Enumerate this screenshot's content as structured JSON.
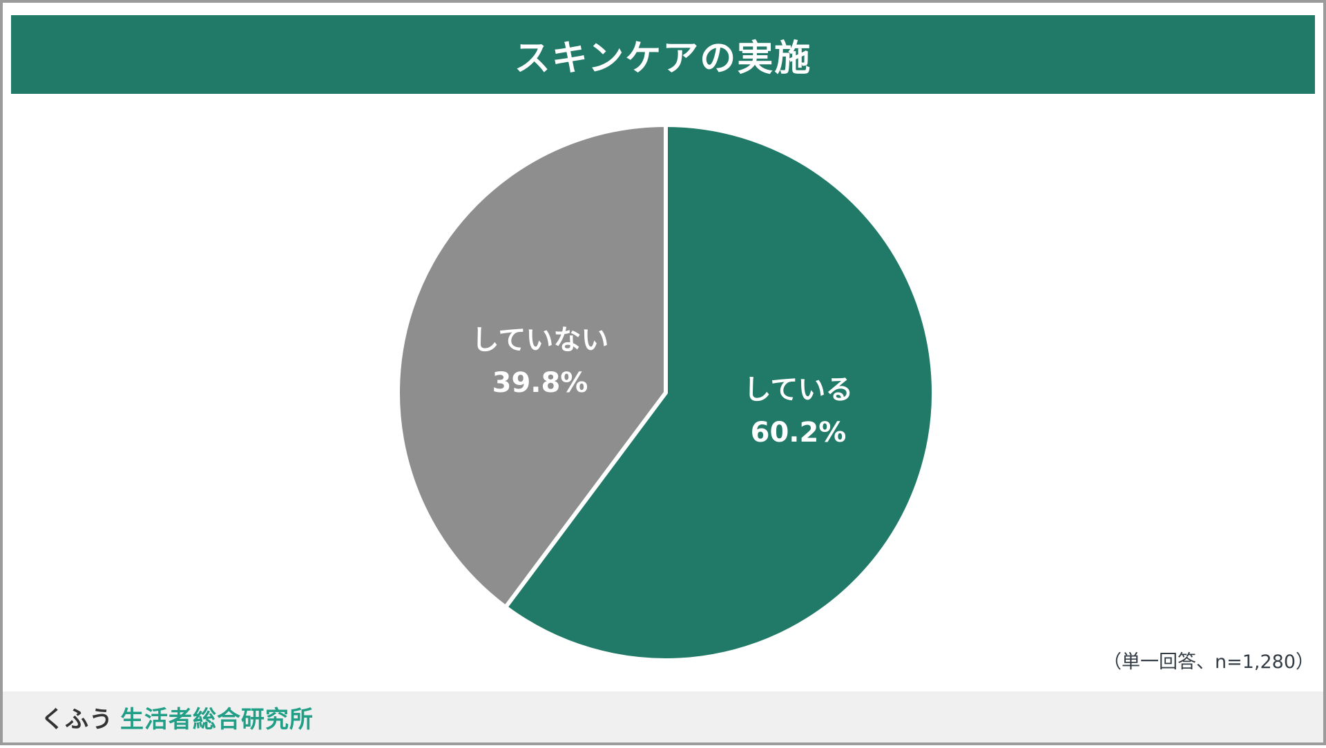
{
  "header": {
    "title": "スキンケアの実施",
    "bg_color": "#217A67",
    "text_color": "#FFFFFF"
  },
  "chart_data": {
    "type": "pie",
    "title": "スキンケアの実施",
    "categories": [
      "している",
      "していない"
    ],
    "values": [
      60.2,
      39.8
    ],
    "segments": [
      {
        "label": "している",
        "value": 60.2,
        "value_label": "60.2%",
        "color": "#217A67"
      },
      {
        "label": "していない",
        "value": 39.8,
        "value_label": "39.8%",
        "color": "#8E8E8E"
      }
    ],
    "start_angle_deg": -90,
    "direction": "clockwise",
    "slice_border_color": "#FFFFFF",
    "labels_inside": true,
    "legend": "none"
  },
  "annotation": {
    "text": "（単一回答、n=1,280）"
  },
  "footer": {
    "brand": "くふう",
    "institute": "生活者総合研究所",
    "brand_color": "#333333",
    "institute_color": "#209E86",
    "bg_color": "#F0F0F0"
  }
}
